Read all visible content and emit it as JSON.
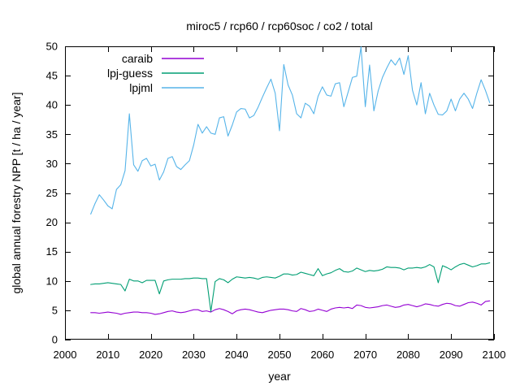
{
  "window": {
    "background": "#ffffff"
  },
  "chart_data": {
    "type": "line",
    "title": "miroc5 / rcp60 / rcp60soc / co2 / total",
    "xlabel": "year",
    "ylabel": "global annual forestry NPP [t / ha / year]",
    "xlim": [
      2000,
      2100
    ],
    "ylim": [
      0,
      50
    ],
    "xticks": [
      2000,
      2010,
      2020,
      2030,
      2040,
      2050,
      2060,
      2070,
      2080,
      2090,
      2100
    ],
    "yticks": [
      0,
      5,
      10,
      15,
      20,
      25,
      30,
      35,
      40,
      45,
      50
    ],
    "grid": false,
    "legend_position": "top-left-inside",
    "axis_color": "#000000",
    "x": [
      2006,
      2007,
      2008,
      2009,
      2010,
      2011,
      2012,
      2013,
      2014,
      2015,
      2016,
      2017,
      2018,
      2019,
      2020,
      2021,
      2022,
      2023,
      2024,
      2025,
      2026,
      2027,
      2028,
      2029,
      2030,
      2031,
      2032,
      2033,
      2034,
      2035,
      2036,
      2037,
      2038,
      2039,
      2040,
      2041,
      2042,
      2043,
      2044,
      2045,
      2046,
      2047,
      2048,
      2049,
      2050,
      2051,
      2052,
      2053,
      2054,
      2055,
      2056,
      2057,
      2058,
      2059,
      2060,
      2061,
      2062,
      2063,
      2064,
      2065,
      2066,
      2067,
      2068,
      2069,
      2070,
      2071,
      2072,
      2073,
      2074,
      2075,
      2076,
      2077,
      2078,
      2079,
      2080,
      2081,
      2082,
      2083,
      2084,
      2085,
      2086,
      2087,
      2088,
      2089,
      2090,
      2091,
      2092,
      2093,
      2094,
      2095,
      2096,
      2097,
      2098,
      2099
    ],
    "series": [
      {
        "name": "caraib",
        "color": "#9400D3",
        "values": [
          4.6,
          4.6,
          4.5,
          4.6,
          4.7,
          4.6,
          4.5,
          4.3,
          4.5,
          4.6,
          4.7,
          4.7,
          4.6,
          4.6,
          4.5,
          4.3,
          4.4,
          4.6,
          4.8,
          4.9,
          4.7,
          4.6,
          4.7,
          4.9,
          5.1,
          5.1,
          4.8,
          4.9,
          4.7,
          5.1,
          5.3,
          5.1,
          4.8,
          4.4,
          4.9,
          5.1,
          5.2,
          5.1,
          4.9,
          4.7,
          4.6,
          4.8,
          5.0,
          5.1,
          5.2,
          5.2,
          5.1,
          4.9,
          4.8,
          5.3,
          5.1,
          4.8,
          4.9,
          5.2,
          5.0,
          4.8,
          5.2,
          5.4,
          5.5,
          5.4,
          5.5,
          5.3,
          5.9,
          5.8,
          5.5,
          5.4,
          5.5,
          5.6,
          5.8,
          5.9,
          5.7,
          5.5,
          5.6,
          5.9,
          6.0,
          5.8,
          5.6,
          5.8,
          6.1,
          6.0,
          5.8,
          5.7,
          6.0,
          6.2,
          6.1,
          5.8,
          5.7,
          6.0,
          6.3,
          6.4,
          6.2,
          5.9,
          6.5,
          6.6
        ]
      },
      {
        "name": "lpj-guess",
        "color": "#009E73",
        "values": [
          9.4,
          9.5,
          9.5,
          9.6,
          9.7,
          9.6,
          9.5,
          9.4,
          8.3,
          10.3,
          10.0,
          10.0,
          9.7,
          10.1,
          10.1,
          10.1,
          7.8,
          10.0,
          10.2,
          10.3,
          10.3,
          10.3,
          10.4,
          10.4,
          10.5,
          10.5,
          10.4,
          10.4,
          4.8,
          9.9,
          10.4,
          10.2,
          9.7,
          10.3,
          10.7,
          10.6,
          10.5,
          10.6,
          10.5,
          10.3,
          10.6,
          10.7,
          10.6,
          10.5,
          10.8,
          11.2,
          11.2,
          11.0,
          11.1,
          11.5,
          11.3,
          11.1,
          10.9,
          12.1,
          10.9,
          11.2,
          11.4,
          11.8,
          12.1,
          11.6,
          11.5,
          11.7,
          12.2,
          11.9,
          11.6,
          11.8,
          11.7,
          11.8,
          12.0,
          12.4,
          12.3,
          12.3,
          12.2,
          11.9,
          12.2,
          12.2,
          12.3,
          12.2,
          12.4,
          12.8,
          12.4,
          9.7,
          12.6,
          12.3,
          11.9,
          12.4,
          12.8,
          13.0,
          12.7,
          12.4,
          12.6,
          12.9,
          12.9,
          13.1
        ]
      },
      {
        "name": "lpjml",
        "color": "#56B4E9",
        "values": [
          21.4,
          23.2,
          24.7,
          23.8,
          22.8,
          22.3,
          25.6,
          26.4,
          28.8,
          38.5,
          29.8,
          28.7,
          30.5,
          30.9,
          29.6,
          29.9,
          27.2,
          28.6,
          30.9,
          31.2,
          29.5,
          29.0,
          29.8,
          30.5,
          33.2,
          36.7,
          35.2,
          36.3,
          35.2,
          35.0,
          37.8,
          38.0,
          34.7,
          36.6,
          38.8,
          39.4,
          39.3,
          37.8,
          38.2,
          39.6,
          41.3,
          42.9,
          44.4,
          42.0,
          35.6,
          46.9,
          43.4,
          41.7,
          38.5,
          37.8,
          40.3,
          39.8,
          38.5,
          41.5,
          43.1,
          41.7,
          41.5,
          43.6,
          43.8,
          39.7,
          42.2,
          44.7,
          44.9,
          49.9,
          39.7,
          46.8,
          39.0,
          42.4,
          44.7,
          46.3,
          47.7,
          46.8,
          48.0,
          45.2,
          48.4,
          42.5,
          40.0,
          43.8,
          38.5,
          42.0,
          40.0,
          38.4,
          38.3,
          39.0,
          41.0,
          39.0,
          41.0,
          42.0,
          41.0,
          39.4,
          42.0,
          44.3,
          42.5,
          40.4
        ]
      }
    ]
  }
}
